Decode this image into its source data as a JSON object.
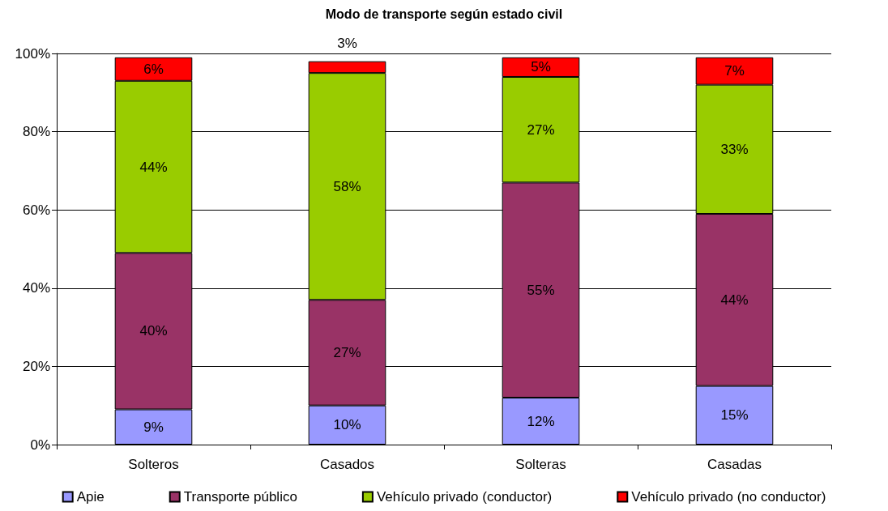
{
  "chart_data": {
    "type": "bar",
    "title": "Modo de transporte según estado civil",
    "stacked": true,
    "categories": [
      "Solteros",
      "Casados",
      "Solteras",
      "Casadas"
    ],
    "series": [
      {
        "name": "Apie",
        "color": "#9999ff",
        "values": [
          9,
          10,
          12,
          15
        ],
        "value_labels": [
          "9%",
          "10%",
          "12%",
          "15%"
        ]
      },
      {
        "name": "Transporte público",
        "color": "#993366",
        "values": [
          40,
          27,
          55,
          44
        ],
        "value_labels": [
          "40%",
          "27%",
          "55%",
          "44%"
        ]
      },
      {
        "name": "Vehículo privado (conductor)",
        "color": "#99cc00",
        "values": [
          44,
          58,
          27,
          33
        ],
        "value_labels": [
          "44%",
          "58%",
          "27%",
          "33%"
        ]
      },
      {
        "name": "Vehículo privado (no conductor)",
        "color": "#ff0000",
        "values": [
          6,
          3,
          5,
          7
        ],
        "value_labels": [
          "6%",
          "3%",
          "5%",
          "7%"
        ]
      }
    ],
    "ylim": [
      0,
      100
    ],
    "yticks": [
      {
        "value": 0,
        "label": "0%"
      },
      {
        "value": 20,
        "label": "20%"
      },
      {
        "value": 40,
        "label": "40%"
      },
      {
        "value": 60,
        "label": "60%"
      },
      {
        "value": 80,
        "label": "80%"
      },
      {
        "value": 100,
        "label": "100%"
      }
    ],
    "grid": "y",
    "legend": "bottom"
  }
}
